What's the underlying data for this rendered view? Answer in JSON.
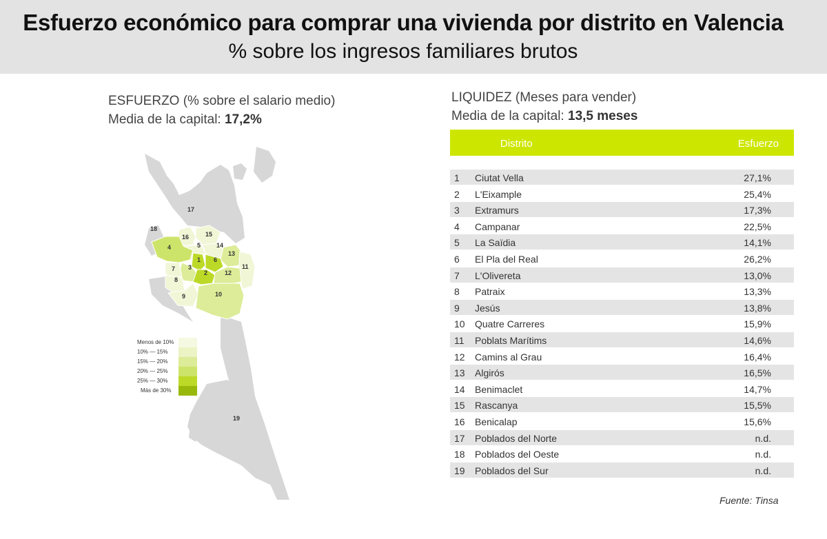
{
  "header": {
    "title": "Esfuerzo económico para comprar una vivienda por distrito en Valencia",
    "subtitle": "% sobre los ingresos familiares brutos"
  },
  "left_panel": {
    "heading": "ESFUERZO (% sobre el salario medio)",
    "mean_label": "Media de la capital:",
    "mean_value": "17,2%"
  },
  "right_panel": {
    "heading": "LIQUIDEZ (Meses para vender)",
    "mean_label": "Media de la capital:",
    "mean_value": "13,5 meses"
  },
  "legend": [
    {
      "label": "Menos de 10%",
      "color": "#f6f9e2"
    },
    {
      "label": "10%   —   15%",
      "color": "#ecf3c4"
    },
    {
      "label": "15%   —   20%",
      "color": "#dcec98"
    },
    {
      "label": "20%   —   25%",
      "color": "#cde46a"
    },
    {
      "label": "25%   —   30%",
      "color": "#bcd927"
    },
    {
      "label": "Más de 30%",
      "color": "#98b80b"
    }
  ],
  "map_labels": [
    "1",
    "2",
    "3",
    "4",
    "5",
    "6",
    "7",
    "8",
    "9",
    "10",
    "11",
    "12",
    "13",
    "14",
    "15",
    "16",
    "17",
    "18",
    "19"
  ],
  "table": {
    "col_district": "Distrito",
    "col_value": "Esfuerzo",
    "rows": [
      {
        "num": "1",
        "name": "Ciutat Vella",
        "value": "27,1%"
      },
      {
        "num": "2",
        "name": "L'Eixample",
        "value": "25,4%"
      },
      {
        "num": "3",
        "name": "Extramurs",
        "value": "17,3%"
      },
      {
        "num": "4",
        "name": "Campanar",
        "value": "22,5%"
      },
      {
        "num": "5",
        "name": "La Saïdia",
        "value": "14,1%"
      },
      {
        "num": "6",
        "name": "El Pla del Real",
        "value": "26,2%"
      },
      {
        "num": "7",
        "name": "L'Olivereta",
        "value": "13,0%"
      },
      {
        "num": "8",
        "name": "Patraix",
        "value": "13,3%"
      },
      {
        "num": "9",
        "name": "Jesús",
        "value": "13,8%"
      },
      {
        "num": "10",
        "name": "Quatre Carreres",
        "value": "15,9%"
      },
      {
        "num": "11",
        "name": "Poblats Marítims",
        "value": "14,6%"
      },
      {
        "num": "12",
        "name": "Camins al Grau",
        "value": "16,4%"
      },
      {
        "num": "13",
        "name": "Algirós",
        "value": "16,5%"
      },
      {
        "num": "14",
        "name": "Benimaclet",
        "value": "14,7%"
      },
      {
        "num": "15",
        "name": "Rascanya",
        "value": "15,5%"
      },
      {
        "num": "16",
        "name": "Benicalap",
        "value": "15,6%"
      },
      {
        "num": "17",
        "name": "Poblados del Norte",
        "value": "n.d."
      },
      {
        "num": "18",
        "name": "Poblados del Oeste",
        "value": "n.d."
      },
      {
        "num": "19",
        "name": "Poblados del Sur",
        "value": "n.d."
      }
    ]
  },
  "source": "Fuente: Tinsa"
}
